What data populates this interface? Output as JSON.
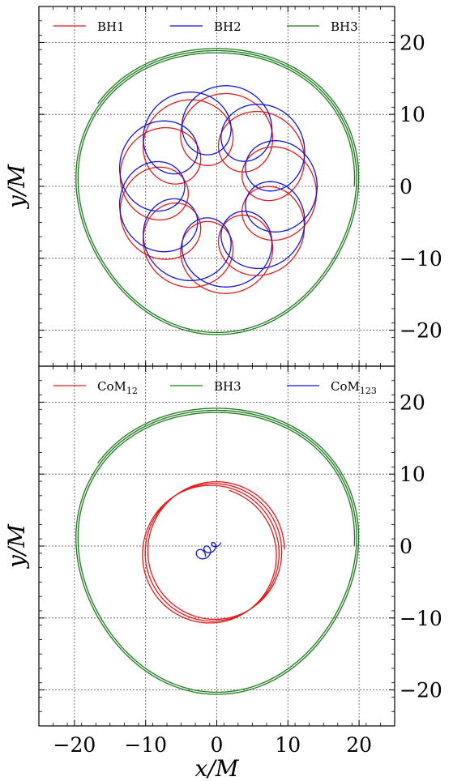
{
  "chart_data": [
    {
      "type": "line",
      "xlim": [
        -25,
        25
      ],
      "ylim": [
        -25,
        25
      ],
      "xlabel": "",
      "ylabel": "y/M",
      "grid": true,
      "legend_position": "top",
      "x_ticks": [
        -20,
        -10,
        0,
        10,
        20
      ],
      "y_ticks": [
        -20,
        -10,
        0,
        10,
        20
      ],
      "y_tick_labels": [
        "−20",
        "−10",
        "0",
        "10",
        "20"
      ],
      "series": [
        {
          "name": "BH1",
          "color": "#e41a1c",
          "kind": "rosette",
          "shape": {
            "cx": 0,
            "cy": -1,
            "R": 9.0,
            "r": 5.0,
            "loops": 9,
            "turns": 1
          }
        },
        {
          "name": "BH2",
          "color": "#1414d8",
          "kind": "rosette",
          "shape": {
            "cx": 0,
            "cy": 0,
            "R": 9.3,
            "r": 4.8,
            "loops": 9,
            "turns": 1
          }
        },
        {
          "name": "BH3",
          "color": "#1b7a1b",
          "kind": "orbit",
          "shape": {
            "x0": -17,
            "y0": 12,
            "turns": 2.4,
            "R0": 20.0,
            "R1": 19.3
          }
        }
      ]
    },
    {
      "type": "line",
      "xlim": [
        -25,
        25
      ],
      "ylim": [
        -25,
        25
      ],
      "xlabel": "x/M",
      "ylabel": "y/M",
      "grid": true,
      "legend_position": "top",
      "x_ticks": [
        -20,
        -10,
        0,
        10,
        20
      ],
      "x_tick_labels": [
        "−20",
        "−10",
        "0",
        "10",
        "20"
      ],
      "y_ticks": [
        -20,
        -10,
        0,
        10,
        20
      ],
      "y_tick_labels": [
        "−20",
        "−10",
        "0",
        "10",
        "20"
      ],
      "series": [
        {
          "name": "CoM",
          "name_sub": "12",
          "color": "#e41a1c",
          "kind": "drift",
          "shape": {
            "cx": 0,
            "cy": -0.5,
            "R": 9.5,
            "turns": 3.2
          }
        },
        {
          "name": "BH3",
          "color": "#1b7a1b",
          "kind": "orbit",
          "shape": {
            "x0": -17,
            "y0": 12,
            "turns": 2.4,
            "R0": 20.0,
            "R1": 19.3
          }
        },
        {
          "name": "CoM",
          "name_sub": "123",
          "color": "#1414d8",
          "kind": "spiral",
          "shape": {
            "x0": -2.5,
            "y0": -1.5,
            "x1": 0.2,
            "y1": 0.5,
            "turns": 3
          }
        }
      ]
    }
  ]
}
